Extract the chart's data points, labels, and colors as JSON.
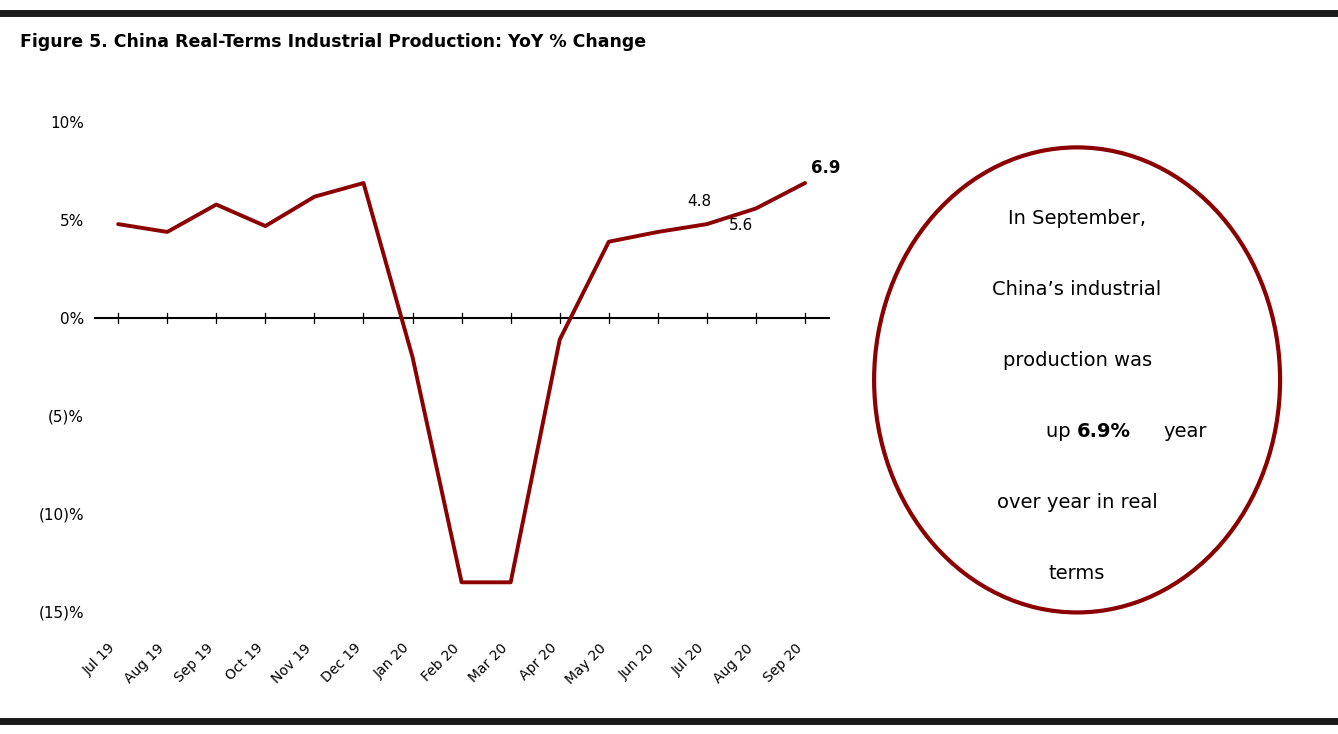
{
  "title": "Figure 5. China Real-Terms Industrial Production: YoY % Change",
  "x_labels": [
    "Jul 19",
    "Aug 19",
    "Sep 19",
    "Oct 19",
    "Nov 19",
    "Dec 19",
    "Jan 20",
    "Feb 20",
    "Mar 20",
    "Apr 20",
    "May 20",
    "Jun 20",
    "Jul 20",
    "Aug 20",
    "Sep 20"
  ],
  "y_values": [
    4.8,
    4.4,
    5.8,
    4.7,
    6.2,
    6.9,
    -2.0,
    -13.5,
    -13.5,
    -1.1,
    3.9,
    4.4,
    4.8,
    5.6,
    6.9
  ],
  "line_color": "#8B0000",
  "line_width": 2.8,
  "ylim": [
    -16,
    11
  ],
  "yticks": [
    -15,
    -10,
    -5,
    0,
    5,
    10
  ],
  "ytick_labels": [
    "(15)%",
    "(10)%",
    "(5)%",
    "0%",
    "5%",
    "10%"
  ],
  "zero_line_color": "#000000",
  "background_color": "#ffffff",
  "circle_color": "#8B0000",
  "top_bar_color": "#1a1a1a",
  "ann_48_idx": 12,
  "ann_48_val": 4.8,
  "ann_56_idx": 13,
  "ann_56_val": 5.6,
  "ann_69_idx": 14,
  "ann_69_val": 6.9
}
